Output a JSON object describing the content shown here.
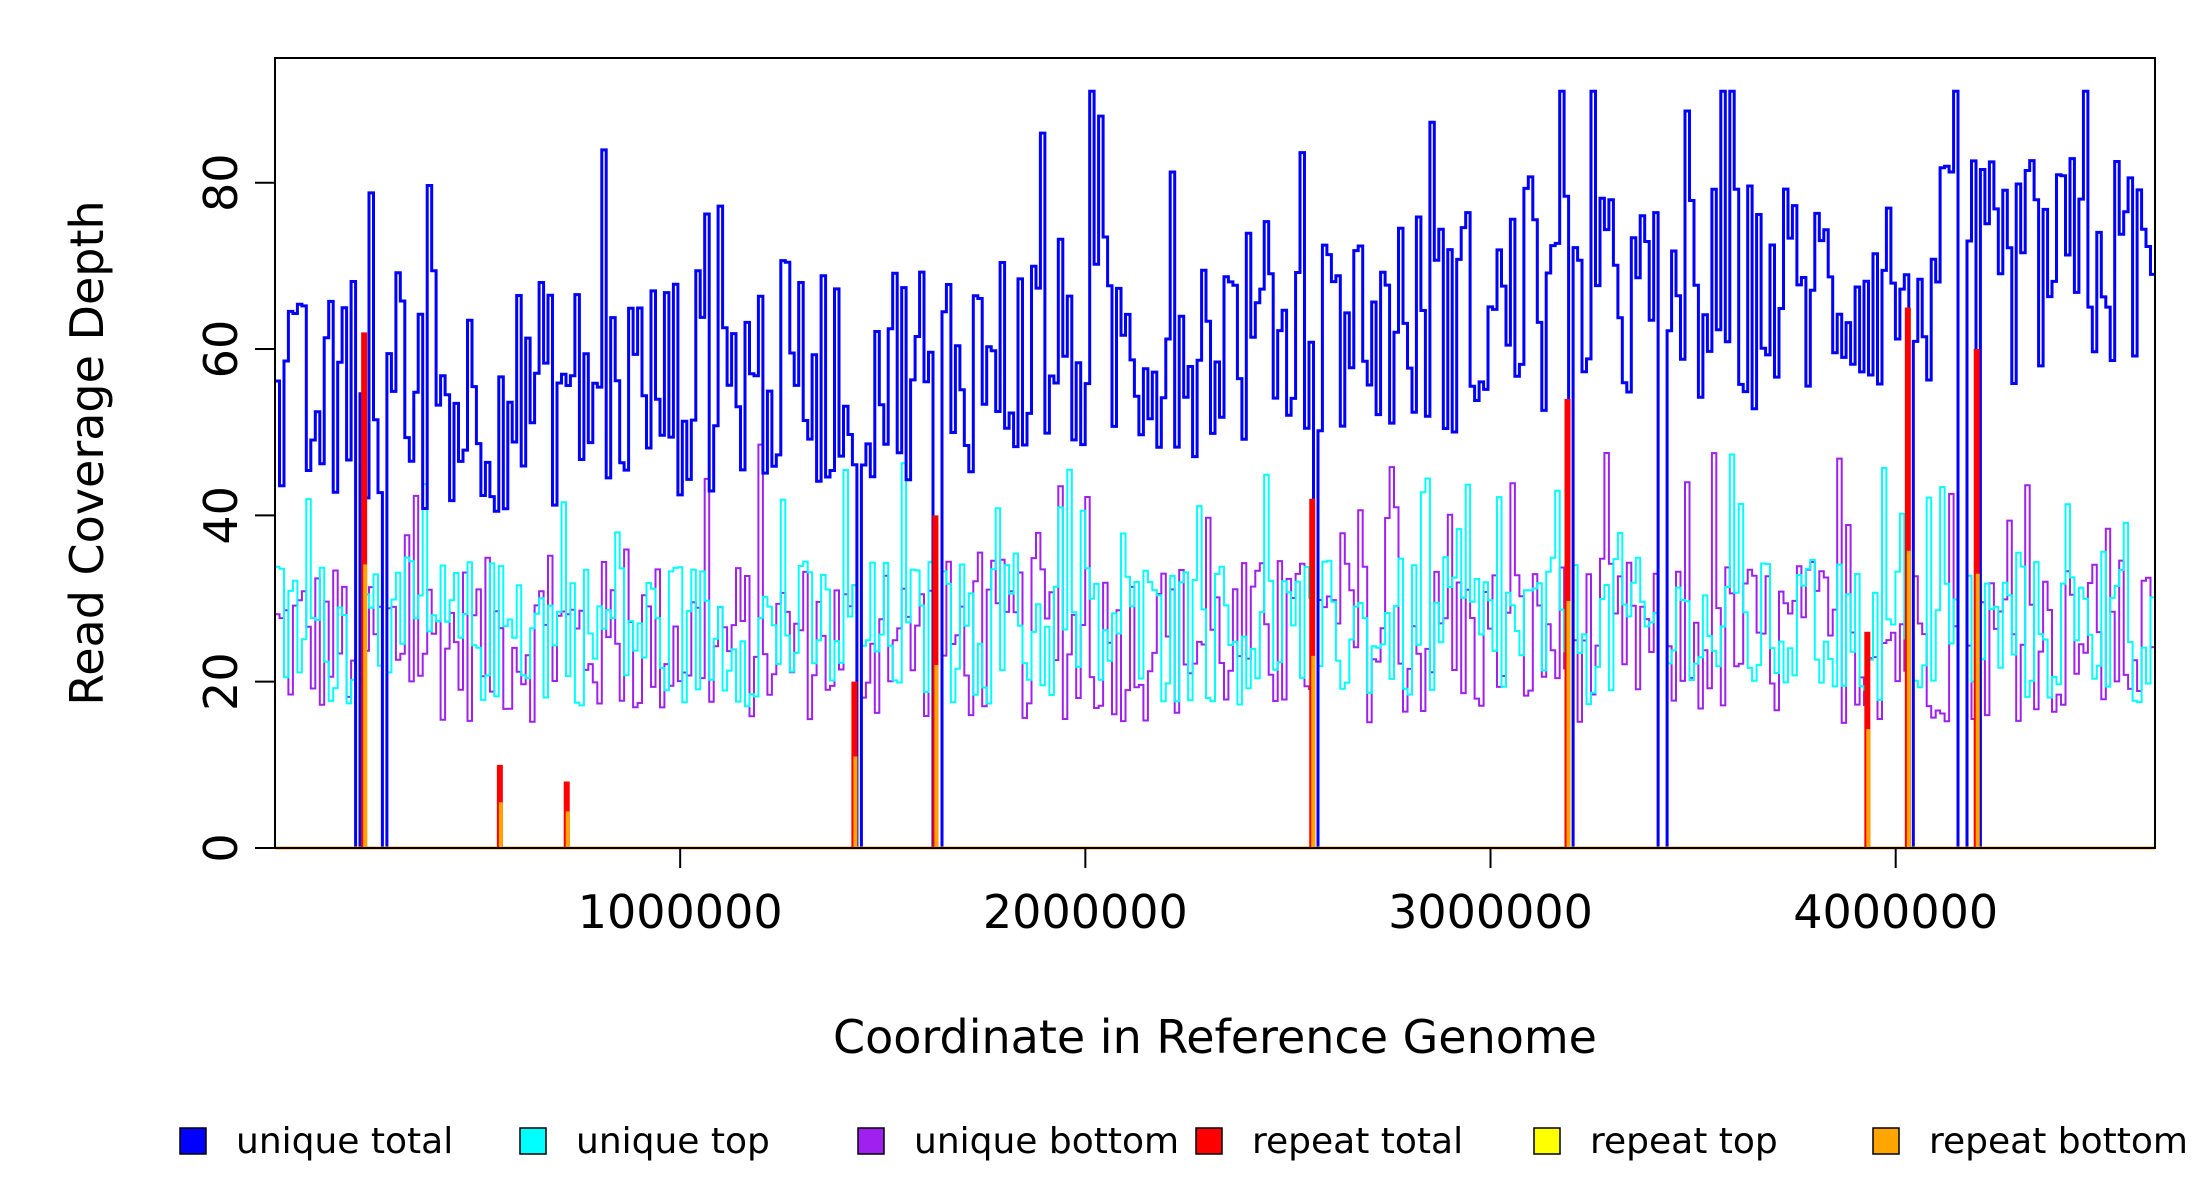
{
  "chart_data": {
    "type": "line",
    "title": "",
    "xlabel": "Coordinate in Reference Genome",
    "ylabel": "Read Coverage Depth",
    "xlim": [
      0,
      4640000
    ],
    "ylim": [
      0,
      95
    ],
    "x_ticks": [
      1000000,
      2000000,
      3000000,
      4000000
    ],
    "x_tick_labels": [
      "1000000",
      "2000000",
      "3000000",
      "4000000"
    ],
    "y_ticks": [
      0,
      20,
      40,
      60,
      80
    ],
    "y_tick_labels": [
      "0",
      "20",
      "40",
      "60",
      "80"
    ],
    "legend": [
      {
        "label": "unique total",
        "color": "#0000ff"
      },
      {
        "label": "unique top",
        "color": "#00ffff"
      },
      {
        "label": "unique bottom",
        "color": "#a020f0"
      },
      {
        "label": "repeat total",
        "color": "#ff0000"
      },
      {
        "label": "repeat top",
        "color": "#ffff00"
      },
      {
        "label": "repeat bottom",
        "color": "#ffa500"
      }
    ],
    "series": [
      {
        "name": "unique total",
        "color": "#0000ff",
        "baseline": 52,
        "amplitude": 14,
        "trend": 2e-09
      },
      {
        "name": "unique top",
        "color": "#00ffff",
        "baseline": 26,
        "amplitude": 9
      },
      {
        "name": "unique bottom",
        "color": "#a020f0",
        "baseline": 25,
        "amplitude": 10
      }
    ],
    "coverage_dropouts_x": [
      200000,
      265000,
      1440000,
      1630000,
      2560000,
      3190000,
      3420000,
      4030000,
      4160000,
      4200000
    ],
    "repeat_peaks": [
      {
        "x": 220000,
        "total": 62
      },
      {
        "x": 555000,
        "total": 10
      },
      {
        "x": 720000,
        "total": 8
      },
      {
        "x": 1430000,
        "total": 20
      },
      {
        "x": 1630000,
        "total": 40
      },
      {
        "x": 2560000,
        "total": 42
      },
      {
        "x": 3190000,
        "total": 54
      },
      {
        "x": 3930000,
        "total": 26
      },
      {
        "x": 4030000,
        "total": 65
      },
      {
        "x": 4200000,
        "total": 60
      }
    ]
  }
}
